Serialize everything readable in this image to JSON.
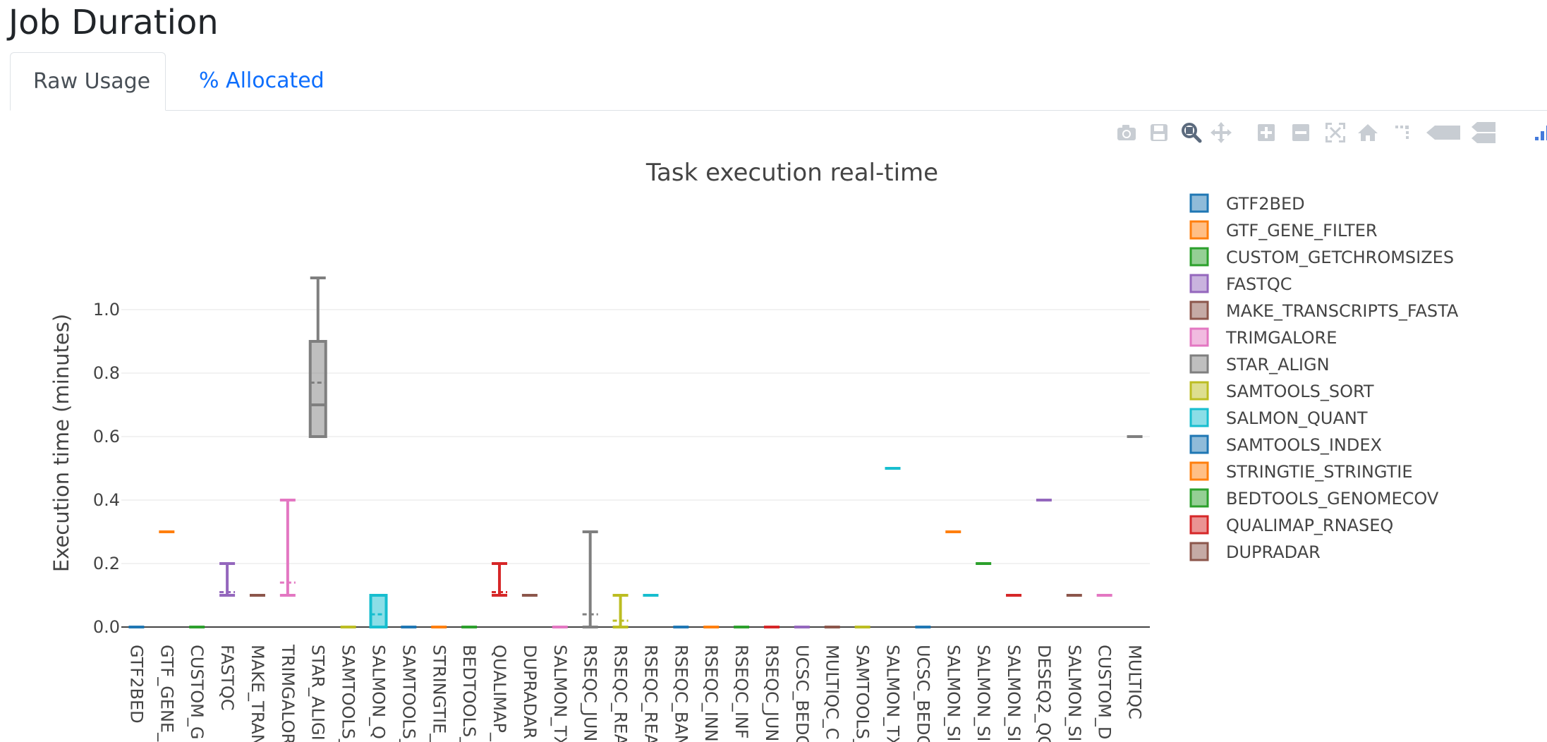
{
  "page": {
    "title": "Job Duration"
  },
  "tabs": [
    {
      "label": "Raw Usage",
      "active": true
    },
    {
      "label": "% Allocated",
      "active": false
    }
  ],
  "modebar": [
    {
      "name": "camera-icon",
      "enabled": false
    },
    {
      "name": "save-icon",
      "enabled": false
    },
    {
      "name": "zoom-icon",
      "enabled": true
    },
    {
      "name": "pan-icon",
      "enabled": false
    },
    {
      "name": "zoom-in-icon",
      "enabled": false
    },
    {
      "name": "zoom-out-icon",
      "enabled": false
    },
    {
      "name": "autoscale-icon",
      "enabled": false
    },
    {
      "name": "reset-axes-icon",
      "enabled": false
    },
    {
      "name": "toggle-spikelines-icon",
      "enabled": false
    },
    {
      "name": "hover-closest-icon",
      "enabled": false
    },
    {
      "name": "hover-compare-icon",
      "enabled": false
    },
    {
      "name": "plotly-logo-icon",
      "enabled": true
    }
  ],
  "chart_data": {
    "type": "box",
    "title": "Task execution real-time",
    "xlabel": "",
    "ylabel": "Execution time (minutes)",
    "ylim": [
      -0.02,
      1.12
    ],
    "yticks": [
      0.0,
      0.2,
      0.4,
      0.6,
      0.8,
      1.0
    ],
    "ytick_labels": [
      "0.0",
      "0.2",
      "0.4",
      "0.6",
      "0.8",
      "1.0"
    ],
    "grid": true,
    "legend_position": "right",
    "categories": [
      "GTF2BED",
      "GTF_GENE_",
      "CUSTOM_G",
      "FASTQC",
      "MAKE_TRAN",
      "TRIMGALOR",
      "STAR_ALIGI",
      "SAMTOOLS_",
      "SALMON_Q",
      "SAMTOOLS_",
      "STRINGTIE_",
      "BEDTOOLS_",
      "QUALIMAP_",
      "DUPRADAR",
      "SALMON_TX",
      "RSEQC_JUN",
      "RSEQC_REA",
      "RSEQC_REA",
      "RSEQC_BAN",
      "RSEQC_INN",
      "RSEQC_INF",
      "RSEQC_JUN",
      "UCSC_BEDC",
      "MULTIQC_C",
      "SAMTOOLS_",
      "SALMON_TX",
      "UCSC_BEDC",
      "SALMON_SI",
      "SALMON_SI",
      "SALMON_SI",
      "DESEQ2_QC",
      "SALMON_SI",
      "CUSTOM_D",
      "MULTIQC"
    ],
    "boxes": [
      {
        "series": "GTF2BED",
        "min": 0.0,
        "q1": 0.0,
        "median": 0.0,
        "q3": 0.0,
        "max": 0.0,
        "mean": 0.0
      },
      {
        "series": "GTF_GENE_FILTER",
        "min": 0.3,
        "q1": 0.3,
        "median": 0.3,
        "q3": 0.3,
        "max": 0.3,
        "mean": 0.3
      },
      {
        "series": "CUSTOM_GETCHROMSIZES",
        "min": 0.0,
        "q1": 0.0,
        "median": 0.0,
        "q3": 0.0,
        "max": 0.0,
        "mean": 0.0
      },
      {
        "series": "FASTQC",
        "min": 0.1,
        "q1": 0.1,
        "median": 0.1,
        "q3": 0.1,
        "max": 0.2,
        "mean": 0.11
      },
      {
        "series": "MAKE_TRANSCRIPTS_FASTA",
        "min": 0.1,
        "q1": 0.1,
        "median": 0.1,
        "q3": 0.1,
        "max": 0.1,
        "mean": 0.1
      },
      {
        "series": "TRIMGALORE",
        "min": 0.1,
        "q1": 0.1,
        "median": 0.1,
        "q3": 0.1,
        "max": 0.4,
        "mean": 0.14
      },
      {
        "series": "STAR_ALIGN",
        "min": 0.6,
        "q1": 0.6,
        "median": 0.7,
        "q3": 0.9,
        "max": 1.1,
        "mean": 0.77
      },
      {
        "series": "SAMTOOLS_SORT",
        "min": 0.0,
        "q1": 0.0,
        "median": 0.0,
        "q3": 0.0,
        "max": 0.0,
        "mean": 0.0
      },
      {
        "series": "SALMON_QUANT",
        "min": 0.0,
        "q1": 0.0,
        "median": 0.0,
        "q3": 0.1,
        "max": 0.1,
        "mean": 0.04
      },
      {
        "series": "SAMTOOLS_INDEX",
        "min": 0.0,
        "q1": 0.0,
        "median": 0.0,
        "q3": 0.0,
        "max": 0.0,
        "mean": 0.0
      },
      {
        "series": "STRINGTIE_STRINGTIE",
        "min": 0.0,
        "q1": 0.0,
        "median": 0.0,
        "q3": 0.0,
        "max": 0.0,
        "mean": 0.0
      },
      {
        "series": "BEDTOOLS_GENOMECOV",
        "min": 0.0,
        "q1": 0.0,
        "median": 0.0,
        "q3": 0.0,
        "max": 0.0,
        "mean": 0.0
      },
      {
        "series": "QUALIMAP_RNASEQ",
        "min": 0.1,
        "q1": 0.1,
        "median": 0.1,
        "q3": 0.1,
        "max": 0.2,
        "mean": 0.11
      },
      {
        "series": "DUPRADAR",
        "min": 0.1,
        "q1": 0.1,
        "median": 0.1,
        "q3": 0.1,
        "max": 0.1,
        "mean": 0.1
      },
      {
        "series": "TRIMGALORE",
        "min": 0.0,
        "q1": 0.0,
        "median": 0.0,
        "q3": 0.0,
        "max": 0.0,
        "mean": 0.0
      },
      {
        "series": "STAR_ALIGN",
        "min": 0.0,
        "q1": 0.0,
        "median": 0.0,
        "q3": 0.0,
        "max": 0.3,
        "mean": 0.04
      },
      {
        "series": "SAMTOOLS_SORT",
        "min": 0.0,
        "q1": 0.0,
        "median": 0.0,
        "q3": 0.0,
        "max": 0.1,
        "mean": 0.02
      },
      {
        "series": "SALMON_QUANT",
        "min": 0.1,
        "q1": 0.1,
        "median": 0.1,
        "q3": 0.1,
        "max": 0.1,
        "mean": 0.1
      },
      {
        "series": "SAMTOOLS_INDEX",
        "min": 0.0,
        "q1": 0.0,
        "median": 0.0,
        "q3": 0.0,
        "max": 0.0,
        "mean": 0.0
      },
      {
        "series": "STRINGTIE_STRINGTIE",
        "min": 0.0,
        "q1": 0.0,
        "median": 0.0,
        "q3": 0.0,
        "max": 0.0,
        "mean": 0.0
      },
      {
        "series": "BEDTOOLS_GENOMECOV",
        "min": 0.0,
        "q1": 0.0,
        "median": 0.0,
        "q3": 0.0,
        "max": 0.0,
        "mean": 0.0
      },
      {
        "series": "QUALIMAP_RNASEQ",
        "min": 0.0,
        "q1": 0.0,
        "median": 0.0,
        "q3": 0.0,
        "max": 0.0,
        "mean": 0.0
      },
      {
        "series": "FASTQC",
        "min": 0.0,
        "q1": 0.0,
        "median": 0.0,
        "q3": 0.0,
        "max": 0.0,
        "mean": 0.0
      },
      {
        "series": "MAKE_TRANSCRIPTS_FASTA",
        "min": 0.0,
        "q1": 0.0,
        "median": 0.0,
        "q3": 0.0,
        "max": 0.0,
        "mean": 0.0
      },
      {
        "series": "SAMTOOLS_SORT",
        "min": 0.0,
        "q1": 0.0,
        "median": 0.0,
        "q3": 0.0,
        "max": 0.0,
        "mean": 0.0
      },
      {
        "series": "SALMON_QUANT",
        "min": 0.5,
        "q1": 0.5,
        "median": 0.5,
        "q3": 0.5,
        "max": 0.5,
        "mean": 0.5
      },
      {
        "series": "SAMTOOLS_INDEX",
        "min": 0.0,
        "q1": 0.0,
        "median": 0.0,
        "q3": 0.0,
        "max": 0.0,
        "mean": 0.0
      },
      {
        "series": "STRINGTIE_STRINGTIE",
        "min": 0.3,
        "q1": 0.3,
        "median": 0.3,
        "q3": 0.3,
        "max": 0.3,
        "mean": 0.3
      },
      {
        "series": "BEDTOOLS_GENOMECOV",
        "min": 0.2,
        "q1": 0.2,
        "median": 0.2,
        "q3": 0.2,
        "max": 0.2,
        "mean": 0.2
      },
      {
        "series": "QUALIMAP_RNASEQ",
        "min": 0.1,
        "q1": 0.1,
        "median": 0.1,
        "q3": 0.1,
        "max": 0.1,
        "mean": 0.1
      },
      {
        "series": "FASTQC",
        "min": 0.4,
        "q1": 0.4,
        "median": 0.4,
        "q3": 0.4,
        "max": 0.4,
        "mean": 0.4
      },
      {
        "series": "MAKE_TRANSCRIPTS_FASTA",
        "min": 0.1,
        "q1": 0.1,
        "median": 0.1,
        "q3": 0.1,
        "max": 0.1,
        "mean": 0.1
      },
      {
        "series": "TRIMGALORE",
        "min": 0.1,
        "q1": 0.1,
        "median": 0.1,
        "q3": 0.1,
        "max": 0.1,
        "mean": 0.1
      },
      {
        "series": "STAR_ALIGN",
        "min": 0.6,
        "q1": 0.6,
        "median": 0.6,
        "q3": 0.6,
        "max": 0.6,
        "mean": 0.6
      }
    ],
    "legend": [
      {
        "name": "GTF2BED",
        "color": "#1f77b4"
      },
      {
        "name": "GTF_GENE_FILTER",
        "color": "#ff7f0e"
      },
      {
        "name": "CUSTOM_GETCHROMSIZES",
        "color": "#2ca02c"
      },
      {
        "name": "FASTQC",
        "color": "#9467bd"
      },
      {
        "name": "MAKE_TRANSCRIPTS_FASTA",
        "color": "#8c564b"
      },
      {
        "name": "TRIMGALORE",
        "color": "#e377c2"
      },
      {
        "name": "STAR_ALIGN",
        "color": "#7f7f7f"
      },
      {
        "name": "SAMTOOLS_SORT",
        "color": "#bcbd22"
      },
      {
        "name": "SALMON_QUANT",
        "color": "#17becf"
      },
      {
        "name": "SAMTOOLS_INDEX",
        "color": "#1f77b4"
      },
      {
        "name": "STRINGTIE_STRINGTIE",
        "color": "#ff7f0e"
      },
      {
        "name": "BEDTOOLS_GENOMECOV",
        "color": "#2ca02c"
      },
      {
        "name": "QUALIMAP_RNASEQ",
        "color": "#d62728"
      },
      {
        "name": "DUPRADAR",
        "color": "#8c564b"
      }
    ]
  }
}
